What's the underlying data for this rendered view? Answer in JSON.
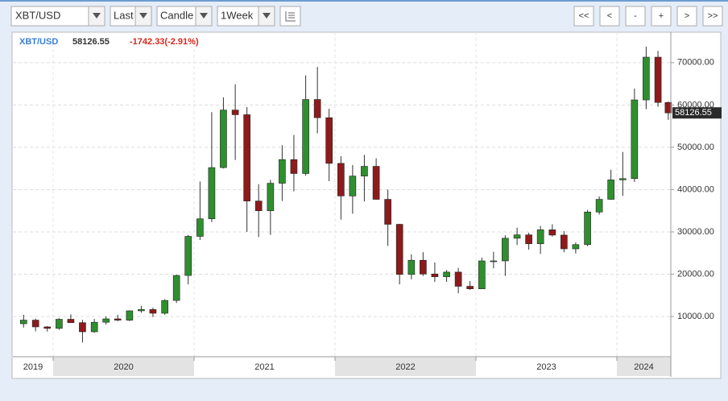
{
  "toolbar": {
    "symbol": "XBT/USD",
    "price_type": "Last",
    "chart_type": "Candle",
    "period": "1Week",
    "nav": [
      "<<",
      "<",
      "-",
      "+",
      ">",
      ">>"
    ]
  },
  "chart_data": {
    "type": "candlestick",
    "title": "XBT/USD",
    "last": 58126.55,
    "change": "-1742.33(-2.91%)",
    "x": [
      2019.79,
      2019.875,
      2019.958,
      2020.042,
      2020.125,
      2020.208,
      2020.292,
      2020.375,
      2020.458,
      2020.542,
      2020.625,
      2020.708,
      2020.792,
      2020.875,
      2020.958,
      2021.042,
      2021.125,
      2021.208,
      2021.292,
      2021.375,
      2021.458,
      2021.542,
      2021.625,
      2021.708,
      2021.792,
      2021.875,
      2021.958,
      2022.042,
      2022.125,
      2022.208,
      2022.292,
      2022.375,
      2022.458,
      2022.542,
      2022.625,
      2022.708,
      2022.792,
      2022.875,
      2022.958,
      2023.042,
      2023.125,
      2023.208,
      2023.292,
      2023.375,
      2023.458,
      2023.542,
      2023.625,
      2023.708,
      2023.792,
      2023.875,
      2023.958,
      2024.042,
      2024.125,
      2024.208,
      2024.292,
      2024.365
    ],
    "open": [
      8300,
      9150,
      7550,
      7200,
      9350,
      8550,
      6400,
      8650,
      9450,
      9140,
      11350,
      11650,
      10780,
      13800,
      19700,
      28950,
      33100,
      45200,
      58800,
      57700,
      37300,
      35000,
      41500,
      47100,
      43800,
      61300,
      57000,
      46200,
      38500,
      43200,
      45500,
      37700,
      31800,
      19950,
      23300,
      20050,
      19400,
      20500,
      17150,
      16550,
      23150,
      23150,
      28500,
      29300,
      27200,
      30500,
      29250,
      26000,
      27000,
      34700,
      37700,
      42300,
      42600,
      61200,
      71300,
      60600
    ],
    "high": [
      10400,
      9500,
      7750,
      9600,
      10500,
      9200,
      9450,
      10050,
      10400,
      11450,
      12500,
      12100,
      14100,
      19900,
      29300,
      41900,
      58300,
      61800,
      64900,
      59500,
      41300,
      42300,
      50500,
      52900,
      67000,
      69000,
      59100,
      47900,
      45800,
      48200,
      47400,
      40000,
      31900,
      24700,
      25200,
      22800,
      21000,
      21500,
      18400,
      23900,
      25300,
      29200,
      31000,
      29800,
      31400,
      31800,
      30200,
      27500,
      35200,
      38400,
      44700,
      48900,
      63900,
      73800,
      72800,
      60800
    ],
    "low": [
      7400,
      6500,
      6450,
      6850,
      8500,
      3850,
      6150,
      8100,
      8900,
      8900,
      10900,
      9850,
      10400,
      13200,
      17600,
      28100,
      32300,
      45000,
      47000,
      30000,
      28800,
      29300,
      37300,
      39600,
      43300,
      53300,
      42000,
      32900,
      34300,
      37200,
      37600,
      26700,
      17600,
      18800,
      19600,
      18200,
      18200,
      15500,
      16300,
      16500,
      21400,
      19600,
      26900,
      25800,
      24800,
      28900,
      25200,
      24900,
      26600,
      34100,
      37600,
      38500,
      41800,
      59000,
      59600,
      56500
    ],
    "close": [
      9150,
      7550,
      7200,
      9350,
      8550,
      6400,
      8650,
      9450,
      9140,
      11350,
      11650,
      10780,
      13800,
      19700,
      28950,
      33100,
      45200,
      58800,
      57700,
      37300,
      35000,
      41500,
      47100,
      43800,
      61300,
      57000,
      46200,
      38500,
      43200,
      45500,
      37700,
      31800,
      19950,
      23300,
      20050,
      19400,
      20500,
      17150,
      16550,
      23150,
      23150,
      28500,
      29300,
      27200,
      30500,
      29250,
      26000,
      27000,
      34700,
      37700,
      42300,
      42600,
      61200,
      71300,
      60600,
      58126.55
    ],
    "up_color": "#2f8f2f",
    "down_color": "#8e1b1b",
    "xlim": [
      2019.714,
      2024.383
    ],
    "xticks": [
      2019,
      2020,
      2021,
      2022,
      2023,
      2024
    ],
    "alt_band_color": "#e3e3e3",
    "ylim": [
      500,
      77200
    ],
    "yticks": [
      {
        "value": 10000,
        "label": "10000.00"
      },
      {
        "value": 20000,
        "label": "20000.00"
      },
      {
        "value": 30000,
        "label": "30000.00"
      },
      {
        "value": 40000,
        "label": "40000.00"
      },
      {
        "value": 50000,
        "label": "50000.00"
      },
      {
        "value": 60000,
        "label": "60000.00"
      },
      {
        "value": 70000,
        "label": "70000.00"
      }
    ],
    "grid": true
  }
}
